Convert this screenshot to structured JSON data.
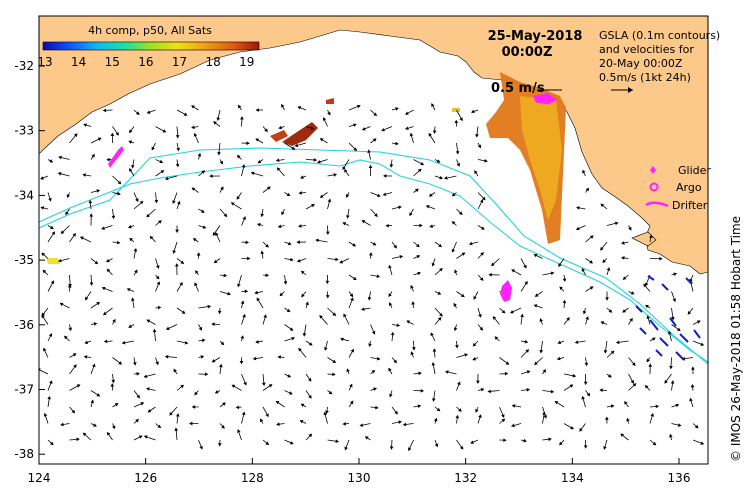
{
  "map": {
    "colorbar_title": "4h comp, p50, All Sats",
    "colorbar_ticks": [
      "13",
      "14",
      "15",
      "16",
      "17",
      "18",
      "19"
    ],
    "date_line": "25-May-2018",
    "time_line": "00:00Z",
    "gsla_note": [
      "GSLA (0.1m contours)",
      "and velocities for",
      "20-May 00:00Z",
      "0.5m/s (1kt 24h)"
    ],
    "scale_label": "0.5 m/s",
    "legend": {
      "glider": "Glider",
      "argo": "Argo",
      "drifter": "Drifter"
    },
    "credit": "© IMOS 26-May-2018 01:58 Hobart Time",
    "lon_ticks": [
      "124",
      "126",
      "128",
      "130",
      "132",
      "134",
      "136"
    ],
    "lat_ticks": [
      "-32",
      "-33",
      "-34",
      "-35",
      "-36",
      "-37",
      "-38"
    ],
    "colors": {
      "land": "#fcc98a",
      "ocean": "#ffffff",
      "contour": "#22d3e0",
      "glider": "#ff22ff",
      "argo": "#ff22ff",
      "drifter": "#ff22ff",
      "vector": "#000000"
    }
  }
}
